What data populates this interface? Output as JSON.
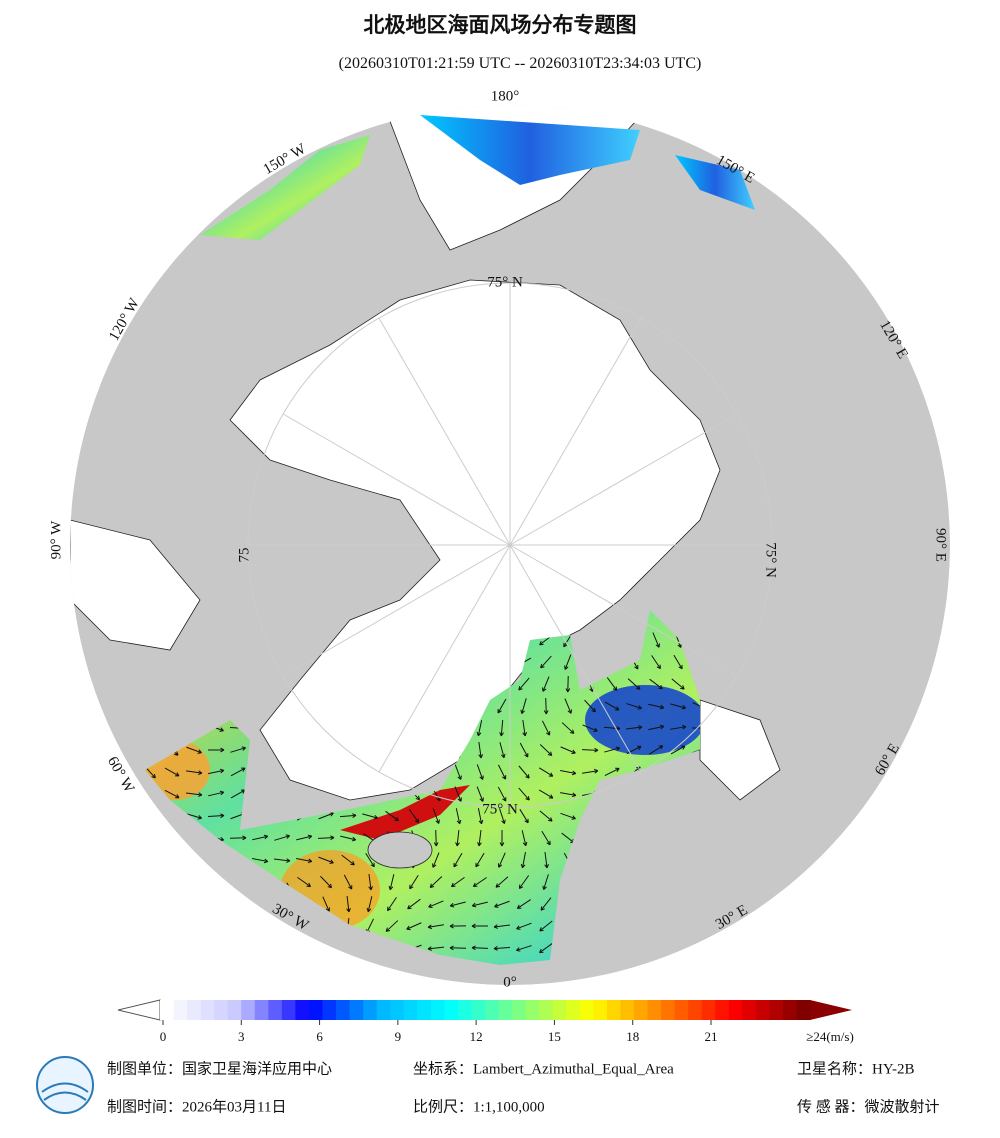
{
  "header": {
    "title": "北极地区海面风场分布专题图",
    "subtitle": "(20260310T01:21:59 UTC -- 20260310T23:34:03 UTC)"
  },
  "map": {
    "meridian_labels": [
      "180°",
      "150° E",
      "120° E",
      "90° E",
      "60° E",
      "30° E",
      "0°",
      "30° W",
      "60° W",
      "90° W",
      "120° W",
      "150° W"
    ],
    "parallel_labels": [
      "75° N",
      "75° N",
      "75° N",
      "75"
    ]
  },
  "colorbar": {
    "lim": [
      0,
      24
    ],
    "ticks": [
      0,
      3,
      6,
      9,
      12,
      15,
      18,
      21,
      {
        "value": 24,
        "label": "≥24(m/s)"
      }
    ],
    "colors": [
      "#ffffff",
      "#c8c8ff",
      "#0000ff",
      "#00b4ff",
      "#00ffff",
      "#80ff80",
      "#ffff00",
      "#ff8000",
      "#ff0000",
      "#800000"
    ]
  },
  "footer": {
    "unit": "制图单位：国家卫星海洋应用中心",
    "crs": "坐标系：Lambert_Azimuthal_Equal_Area",
    "satellite": "卫星名称：HY-2B",
    "date": "制图时间：2026年03月11日",
    "scale": "比例尺：1:1,100,000",
    "sensor": "传 感 器：微波散射计"
  }
}
